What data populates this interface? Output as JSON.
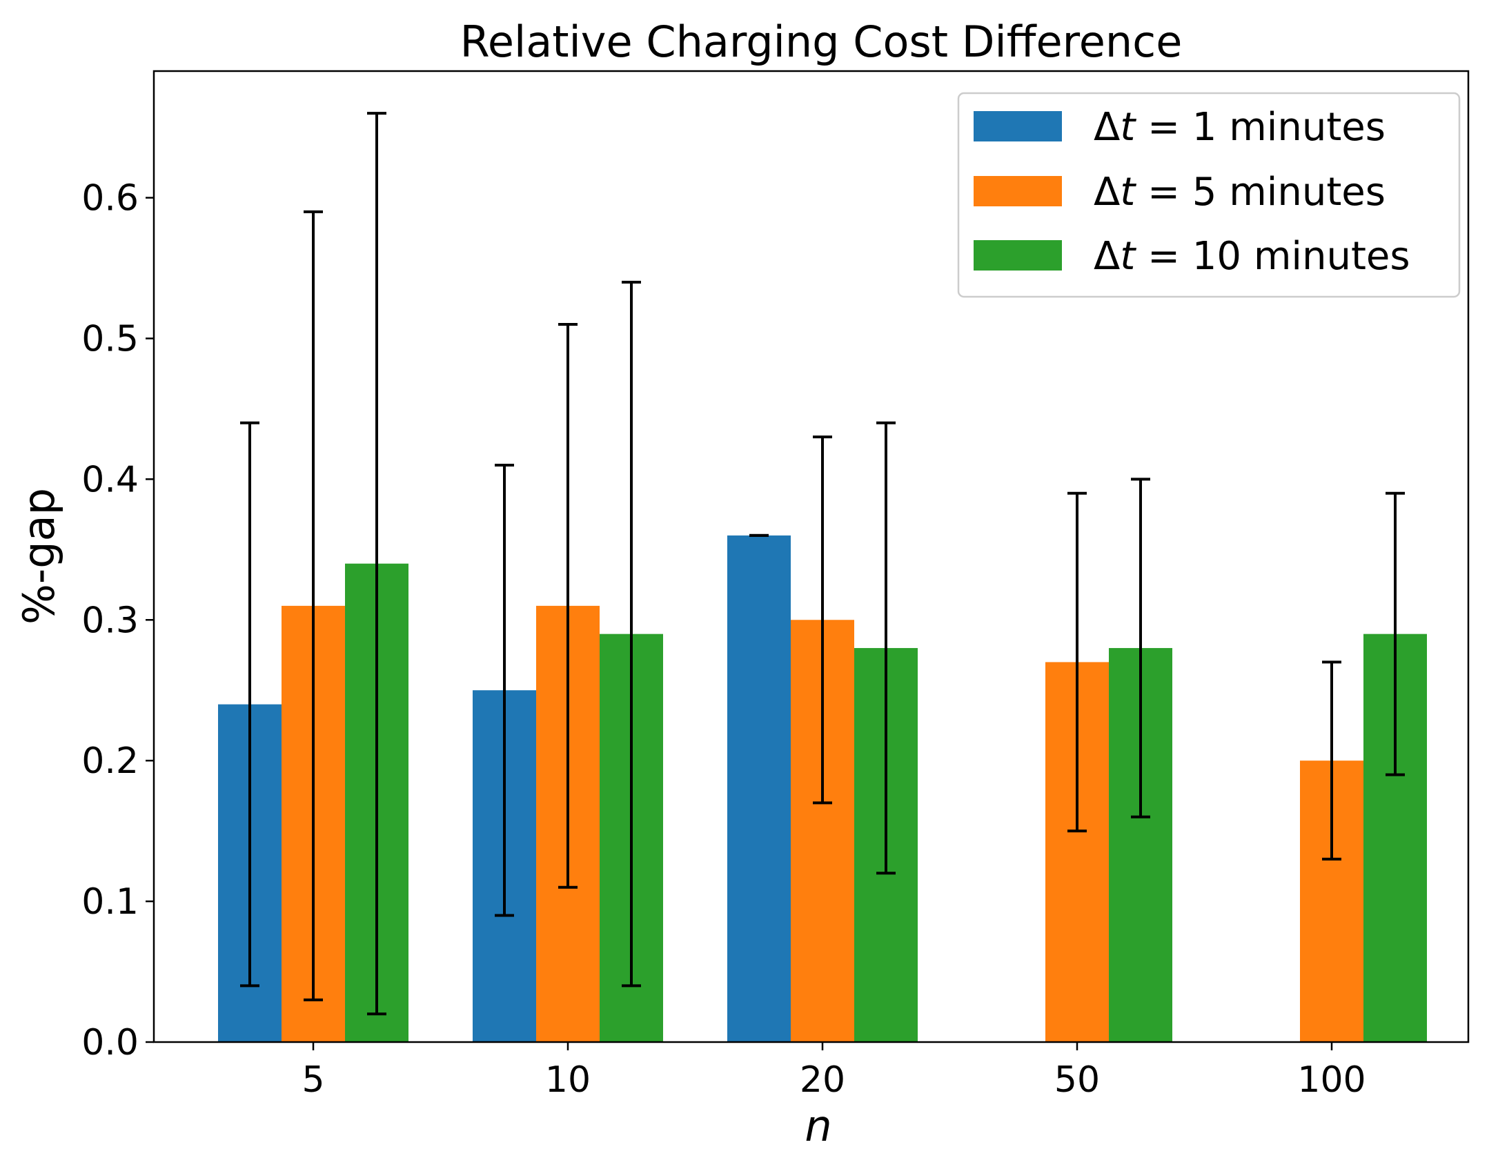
{
  "chart_data": {
    "type": "bar",
    "title": "Relative Charging Cost Difference",
    "xlabel": "n",
    "ylabel": "%-gap",
    "categories": [
      "5",
      "10",
      "20",
      "50",
      "100"
    ],
    "ylim": [
      0,
      0.69
    ],
    "yticks": [
      "0.0",
      "0.1",
      "0.2",
      "0.3",
      "0.4",
      "0.5",
      "0.6"
    ],
    "grid": false,
    "legend_position": "top-right",
    "series": [
      {
        "name_prefix": "Δt",
        "name_rest": " = 1 minutes",
        "color": "#1f77b4",
        "values": [
          0.24,
          0.25,
          0.36,
          0.0,
          0.0
        ],
        "err_low": [
          0.04,
          0.09,
          0.36,
          null,
          null
        ],
        "err_high": [
          0.44,
          0.41,
          0.36,
          null,
          null
        ]
      },
      {
        "name_prefix": "Δt",
        "name_rest": " = 5 minutes",
        "color": "#ff7f0e",
        "values": [
          0.31,
          0.31,
          0.3,
          0.27,
          0.2
        ],
        "err_low": [
          0.03,
          0.11,
          0.17,
          0.15,
          0.13
        ],
        "err_high": [
          0.59,
          0.51,
          0.43,
          0.39,
          0.27
        ]
      },
      {
        "name_prefix": "Δt",
        "name_rest": " = 10 minutes",
        "color": "#2ca02c",
        "values": [
          0.34,
          0.29,
          0.28,
          0.28,
          0.29
        ],
        "err_low": [
          0.02,
          0.04,
          0.12,
          0.16,
          0.19
        ],
        "err_high": [
          0.66,
          0.54,
          0.44,
          0.4,
          0.39
        ]
      }
    ]
  }
}
